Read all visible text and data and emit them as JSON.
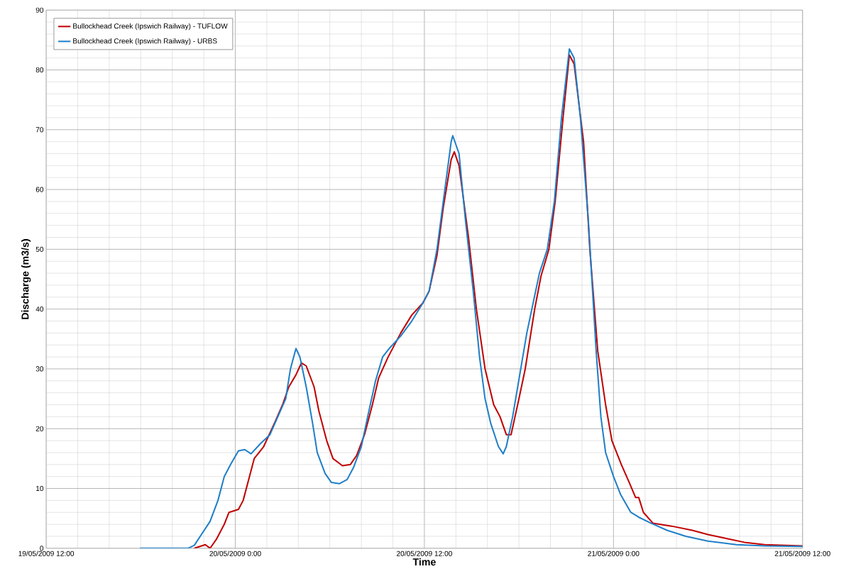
{
  "chart_data": {
    "type": "line",
    "xlabel": "Time",
    "ylabel": "Discharge (m3/s)",
    "xlim": [
      "2009-05-19T12:00",
      "2009-05-21T12:00"
    ],
    "ylim": [
      0,
      90
    ],
    "xticks": [
      {
        "value": "2009-05-19T12:00",
        "label": "19/05/2009 12:00"
      },
      {
        "value": "2009-05-20T00:00",
        "label": "20/05/2009 0:00"
      },
      {
        "value": "2009-05-20T12:00",
        "label": "20/05/2009 12:00"
      },
      {
        "value": "2009-05-21T00:00",
        "label": "21/05/2009 0:00"
      },
      {
        "value": "2009-05-21T12:00",
        "label": "21/05/2009 12:00"
      }
    ],
    "yticks": [
      0,
      10,
      20,
      30,
      40,
      50,
      60,
      70,
      80,
      90
    ],
    "grid": true,
    "legend": "top left",
    "marker": "none",
    "line_style": "solid",
    "series": [
      {
        "name": "Bullockhead Creek (Ipswich Railway) - TUFLOW",
        "color": "#c00000",
        "x": [
          "2009-05-19T21:24",
          "2009-05-19T22:06",
          "2009-05-19T22:24",
          "2009-05-19T22:48",
          "2009-05-19T23:18",
          "2009-05-19T23:36",
          "2009-05-20T00:12",
          "2009-05-20T00:30",
          "2009-05-20T00:54",
          "2009-05-20T01:12",
          "2009-05-20T01:48",
          "2009-05-20T02:30",
          "2009-05-20T03:00",
          "2009-05-20T03:24",
          "2009-05-20T03:51",
          "2009-05-20T04:12",
          "2009-05-20T04:30",
          "2009-05-20T05:00",
          "2009-05-20T05:18",
          "2009-05-20T05:48",
          "2009-05-20T06:12",
          "2009-05-20T06:48",
          "2009-05-20T07:18",
          "2009-05-20T07:42",
          "2009-05-20T08:12",
          "2009-05-20T08:42",
          "2009-05-20T09:06",
          "2009-05-20T09:42",
          "2009-05-20T10:30",
          "2009-05-20T11:12",
          "2009-05-20T11:54",
          "2009-05-20T12:18",
          "2009-05-20T12:48",
          "2009-05-20T13:12",
          "2009-05-20T13:42",
          "2009-05-20T13:54",
          "2009-05-20T14:12",
          "2009-05-20T14:48",
          "2009-05-20T15:18",
          "2009-05-20T15:51",
          "2009-05-20T16:24",
          "2009-05-20T16:48",
          "2009-05-20T17:12",
          "2009-05-20T17:30",
          "2009-05-20T18:00",
          "2009-05-20T18:24",
          "2009-05-20T19:00",
          "2009-05-20T19:24",
          "2009-05-20T19:54",
          "2009-05-20T20:18",
          "2009-05-20T20:48",
          "2009-05-20T21:12",
          "2009-05-20T21:30",
          "2009-05-20T22:06",
          "2009-05-20T22:30",
          "2009-05-20T23:00",
          "2009-05-20T23:30",
          "2009-05-20T23:54",
          "2009-05-21T00:30",
          "2009-05-21T01:00",
          "2009-05-21T01:24",
          "2009-05-21T01:36",
          "2009-05-21T01:54",
          "2009-05-21T02:30",
          "2009-05-21T03:42",
          "2009-05-21T05:00",
          "2009-05-21T06:00",
          "2009-05-21T06:54",
          "2009-05-21T08:18",
          "2009-05-21T09:36",
          "2009-05-21T12:00"
        ],
        "values": [
          0,
          0.6,
          0,
          1.5,
          4,
          6,
          6.5,
          8,
          12,
          15,
          17,
          21,
          24,
          27,
          29,
          31,
          30.5,
          27,
          23,
          18,
          15,
          13.8,
          14,
          15.5,
          19,
          24,
          28.5,
          32,
          36,
          39,
          41,
          43,
          49,
          57,
          65,
          66.3,
          64,
          52,
          40,
          30,
          24,
          22,
          19,
          19,
          25,
          30,
          40,
          45.5,
          50,
          58,
          72,
          82.5,
          81,
          68,
          50,
          33,
          24,
          18,
          14,
          11,
          8.5,
          8.5,
          6,
          4.2,
          3.7,
          3,
          2.3,
          1.8,
          1,
          0.6,
          0.4
        ]
      },
      {
        "name": "Bullockhead Creek (Ipswich Railway) - URBS",
        "color": "#1f7fc8",
        "x": [
          "2009-05-19T17:57",
          "2009-05-19T21:00",
          "2009-05-19T21:24",
          "2009-05-19T21:54",
          "2009-05-19T22:24",
          "2009-05-19T22:54",
          "2009-05-19T23:18",
          "2009-05-19T23:42",
          "2009-05-20T00:12",
          "2009-05-20T00:36",
          "2009-05-20T01:00",
          "2009-05-20T01:36",
          "2009-05-20T02:12",
          "2009-05-20T02:42",
          "2009-05-20T03:12",
          "2009-05-20T03:30",
          "2009-05-20T03:51",
          "2009-05-20T04:06",
          "2009-05-20T04:30",
          "2009-05-20T04:54",
          "2009-05-20T05:12",
          "2009-05-20T05:42",
          "2009-05-20T06:06",
          "2009-05-20T06:36",
          "2009-05-20T07:06",
          "2009-05-20T07:30",
          "2009-05-20T08:00",
          "2009-05-20T08:24",
          "2009-05-20T08:54",
          "2009-05-20T09:21",
          "2009-05-20T09:48",
          "2009-05-20T10:30",
          "2009-05-20T11:12",
          "2009-05-20T11:54",
          "2009-05-20T12:18",
          "2009-05-20T12:48",
          "2009-05-20T13:12",
          "2009-05-20T13:42",
          "2009-05-20T13:48",
          "2009-05-20T14:12",
          "2009-05-20T14:36",
          "2009-05-20T15:06",
          "2009-05-20T15:30",
          "2009-05-20T15:51",
          "2009-05-20T16:12",
          "2009-05-20T16:42",
          "2009-05-20T17:00",
          "2009-05-20T17:12",
          "2009-05-20T17:36",
          "2009-05-20T18:03",
          "2009-05-20T18:30",
          "2009-05-20T18:54",
          "2009-05-20T19:18",
          "2009-05-20T19:48",
          "2009-05-20T20:15",
          "2009-05-20T20:42",
          "2009-05-20T21:12",
          "2009-05-20T21:30",
          "2009-05-20T21:54",
          "2009-05-20T22:24",
          "2009-05-20T22:54",
          "2009-05-20T23:12",
          "2009-05-20T23:30",
          "2009-05-21T00:00",
          "2009-05-21T00:27",
          "2009-05-21T01:06",
          "2009-05-21T01:36",
          "2009-05-21T02:18",
          "2009-05-21T03:24",
          "2009-05-21T04:36",
          "2009-05-21T06:00",
          "2009-05-21T07:48",
          "2009-05-21T09:36",
          "2009-05-21T12:00"
        ],
        "values": [
          0,
          0,
          0.5,
          2.5,
          4.5,
          8,
          12,
          14,
          16.3,
          16.5,
          15.8,
          17.5,
          19,
          22,
          25,
          30,
          33.4,
          32,
          27,
          21,
          16,
          12.5,
          11,
          10.8,
          11.5,
          13.5,
          17,
          22,
          28,
          32,
          33.5,
          35.5,
          38,
          41,
          43,
          50,
          58,
          68,
          69,
          66,
          55,
          43,
          32,
          25,
          21,
          17,
          15.8,
          17,
          22,
          29,
          36,
          41,
          46,
          50,
          58,
          72,
          83.5,
          82,
          72,
          55,
          33,
          22,
          16,
          12,
          9,
          6,
          5.2,
          4.3,
          3,
          2,
          1.2,
          0.6,
          0.4,
          0.3
        ]
      }
    ]
  }
}
